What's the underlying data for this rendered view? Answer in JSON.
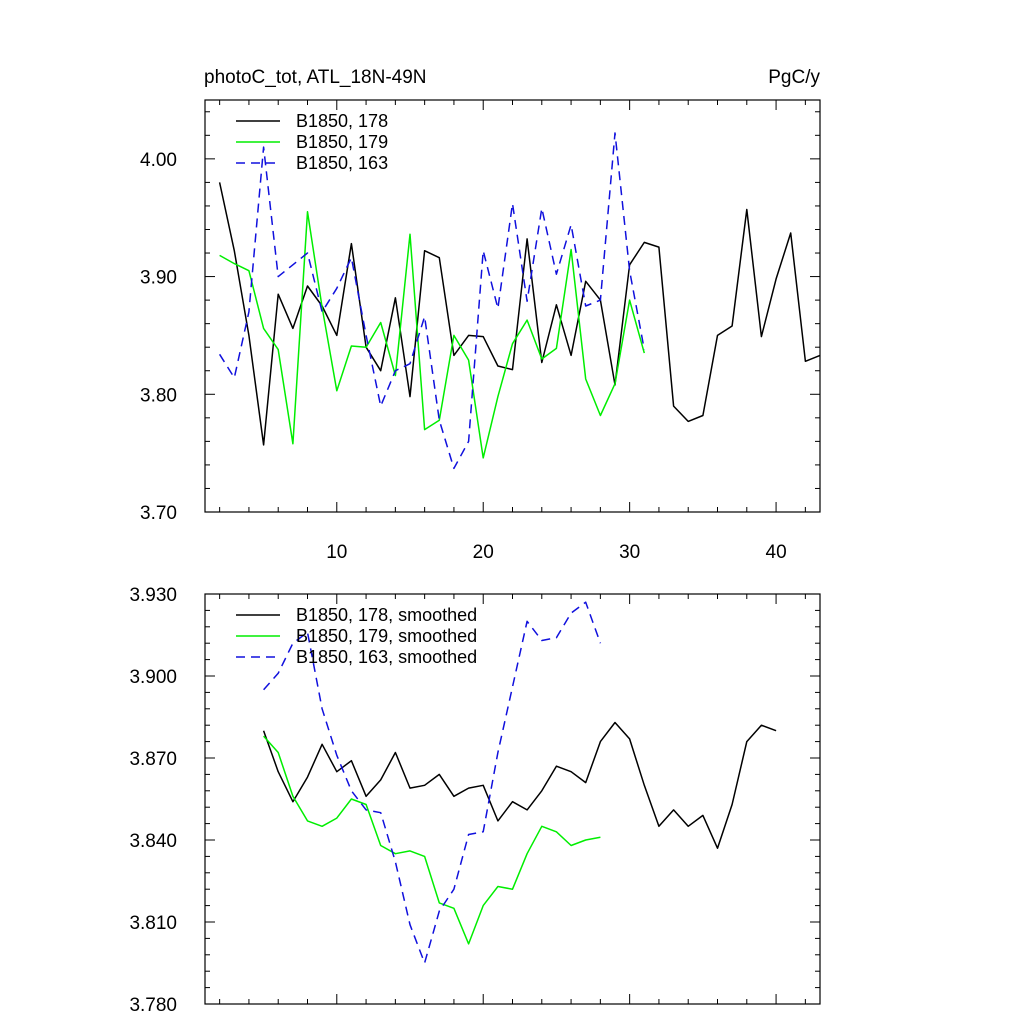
{
  "chart_data": [
    {
      "type": "line",
      "title_left": "photoC_tot, ATL_18N-49N",
      "title_right": "PgC/y",
      "xlabel": "",
      "ylabel": "",
      "xlim": [
        1,
        43
      ],
      "ylim": [
        3.7,
        4.05
      ],
      "y_ticks": [
        3.7,
        3.8,
        3.9,
        4.0
      ],
      "y_tick_labels": [
        "3.70",
        "3.80",
        "3.90",
        "4.00"
      ],
      "y_minor_step": 0.02,
      "x_ticks": [
        10,
        20,
        30,
        40
      ],
      "x_tick_labels": [
        "10",
        "20",
        "30",
        "40"
      ],
      "x_minor_step": 2,
      "show_x_tick_labels": true,
      "legend_position": "top-left",
      "grid": false,
      "series": [
        {
          "name": "B1850, 178",
          "color": "#000000",
          "dash": "solid",
          "x": [
            2,
            3,
            4,
            5,
            6,
            7,
            8,
            9,
            10,
            11,
            12,
            13,
            14,
            15,
            16,
            17,
            18,
            19,
            20,
            21,
            22,
            23,
            24,
            25,
            26,
            27,
            28,
            29,
            30,
            31,
            32,
            33,
            34,
            35,
            36,
            37,
            38,
            39,
            40,
            41,
            42,
            43
          ],
          "values": [
            3.98,
            3.922,
            3.85,
            3.757,
            3.885,
            3.856,
            3.892,
            3.875,
            3.85,
            3.928,
            3.84,
            3.82,
            3.882,
            3.798,
            3.922,
            3.916,
            3.833,
            3.85,
            3.849,
            3.824,
            3.821,
            3.932,
            3.827,
            3.876,
            3.833,
            3.896,
            3.88,
            3.808,
            3.91,
            3.929,
            3.925,
            3.79,
            3.777,
            3.782,
            3.85,
            3.858,
            3.957,
            3.849,
            3.898,
            3.937,
            3.828,
            3.833
          ]
        },
        {
          "name": "B1850, 179",
          "color": "#00ee00",
          "dash": "solid",
          "x": [
            2,
            3,
            4,
            5,
            6,
            7,
            8,
            9,
            10,
            11,
            12,
            13,
            14,
            15,
            16,
            17,
            18,
            19,
            20,
            21,
            22,
            23,
            24,
            25,
            26,
            27,
            28,
            29,
            30,
            31
          ],
          "values": [
            3.918,
            3.911,
            3.905,
            3.856,
            3.838,
            3.758,
            3.955,
            3.874,
            3.803,
            3.841,
            3.84,
            3.861,
            3.816,
            3.936,
            3.77,
            3.778,
            3.85,
            3.829,
            3.746,
            3.798,
            3.843,
            3.863,
            3.83,
            3.839,
            3.923,
            3.813,
            3.782,
            3.809,
            3.88,
            3.835
          ]
        },
        {
          "name": "B1850, 163",
          "color": "#1010dd",
          "dash": "dashed",
          "x": [
            2,
            3,
            4,
            5,
            6,
            7,
            8,
            9,
            10,
            11,
            12,
            13,
            14,
            15,
            16,
            17,
            18,
            19,
            20,
            21,
            22,
            23,
            24,
            25,
            26,
            27,
            28,
            29,
            30,
            31
          ],
          "values": [
            3.834,
            3.814,
            3.87,
            4.01,
            3.9,
            3.91,
            3.92,
            3.87,
            3.89,
            3.916,
            3.85,
            3.79,
            3.82,
            3.826,
            3.866,
            3.778,
            3.737,
            3.76,
            3.922,
            3.873,
            3.962,
            3.879,
            3.958,
            3.902,
            3.944,
            3.875,
            3.88,
            4.022,
            3.905,
            3.838
          ]
        }
      ]
    },
    {
      "type": "line",
      "xlim": [
        1,
        43
      ],
      "ylim": [
        3.78,
        3.93
      ],
      "y_ticks": [
        3.78,
        3.81,
        3.84,
        3.87,
        3.9,
        3.93
      ],
      "y_tick_labels": [
        "3.780",
        "3.810",
        "3.840",
        "3.870",
        "3.900",
        "3.930"
      ],
      "y_minor_step": 0.006,
      "x_ticks": [
        10,
        20,
        30,
        40
      ],
      "x_minor_step": 2,
      "show_x_tick_labels": false,
      "legend_position": "top-left",
      "grid": false,
      "series": [
        {
          "name": "B1850, 178, smoothed",
          "color": "#000000",
          "dash": "solid",
          "x": [
            5,
            6,
            7,
            8,
            9,
            10,
            11,
            12,
            13,
            14,
            15,
            16,
            17,
            18,
            19,
            20,
            21,
            22,
            23,
            24,
            25,
            26,
            27,
            28,
            29,
            30,
            31,
            32,
            33,
            34,
            35,
            36,
            37,
            38,
            39,
            40
          ],
          "values": [
            3.88,
            3.865,
            3.854,
            3.863,
            3.875,
            3.865,
            3.869,
            3.856,
            3.862,
            3.872,
            3.859,
            3.86,
            3.864,
            3.856,
            3.859,
            3.86,
            3.847,
            3.854,
            3.851,
            3.858,
            3.867,
            3.865,
            3.861,
            3.876,
            3.883,
            3.877,
            3.86,
            3.845,
            3.851,
            3.845,
            3.849,
            3.837,
            3.853,
            3.876,
            3.882,
            3.88
          ]
        },
        {
          "name": "B1850, 179, smoothed",
          "color": "#00ee00",
          "dash": "solid",
          "x": [
            5,
            6,
            7,
            8,
            9,
            10,
            11,
            12,
            13,
            14,
            15,
            16,
            17,
            18,
            19,
            20,
            21,
            22,
            23,
            24,
            25,
            26,
            27,
            28
          ],
          "values": [
            3.878,
            3.872,
            3.856,
            3.847,
            3.845,
            3.848,
            3.855,
            3.853,
            3.838,
            3.835,
            3.836,
            3.834,
            3.817,
            3.815,
            3.802,
            3.816,
            3.823,
            3.822,
            3.835,
            3.845,
            3.843,
            3.838,
            3.84,
            3.841
          ]
        },
        {
          "name": "B1850, 163, smoothed",
          "color": "#1010dd",
          "dash": "dashed",
          "x": [
            5,
            6,
            7,
            8,
            9,
            10,
            11,
            12,
            13,
            14,
            15,
            16,
            17,
            18,
            19,
            20,
            21,
            22,
            23,
            24,
            25,
            26,
            27,
            28
          ],
          "values": [
            3.895,
            3.901,
            3.912,
            3.916,
            3.888,
            3.871,
            3.858,
            3.851,
            3.85,
            3.832,
            3.809,
            3.795,
            3.814,
            3.822,
            3.842,
            3.843,
            3.872,
            3.896,
            3.92,
            3.913,
            3.914,
            3.923,
            3.927,
            3.912
          ]
        }
      ]
    }
  ]
}
